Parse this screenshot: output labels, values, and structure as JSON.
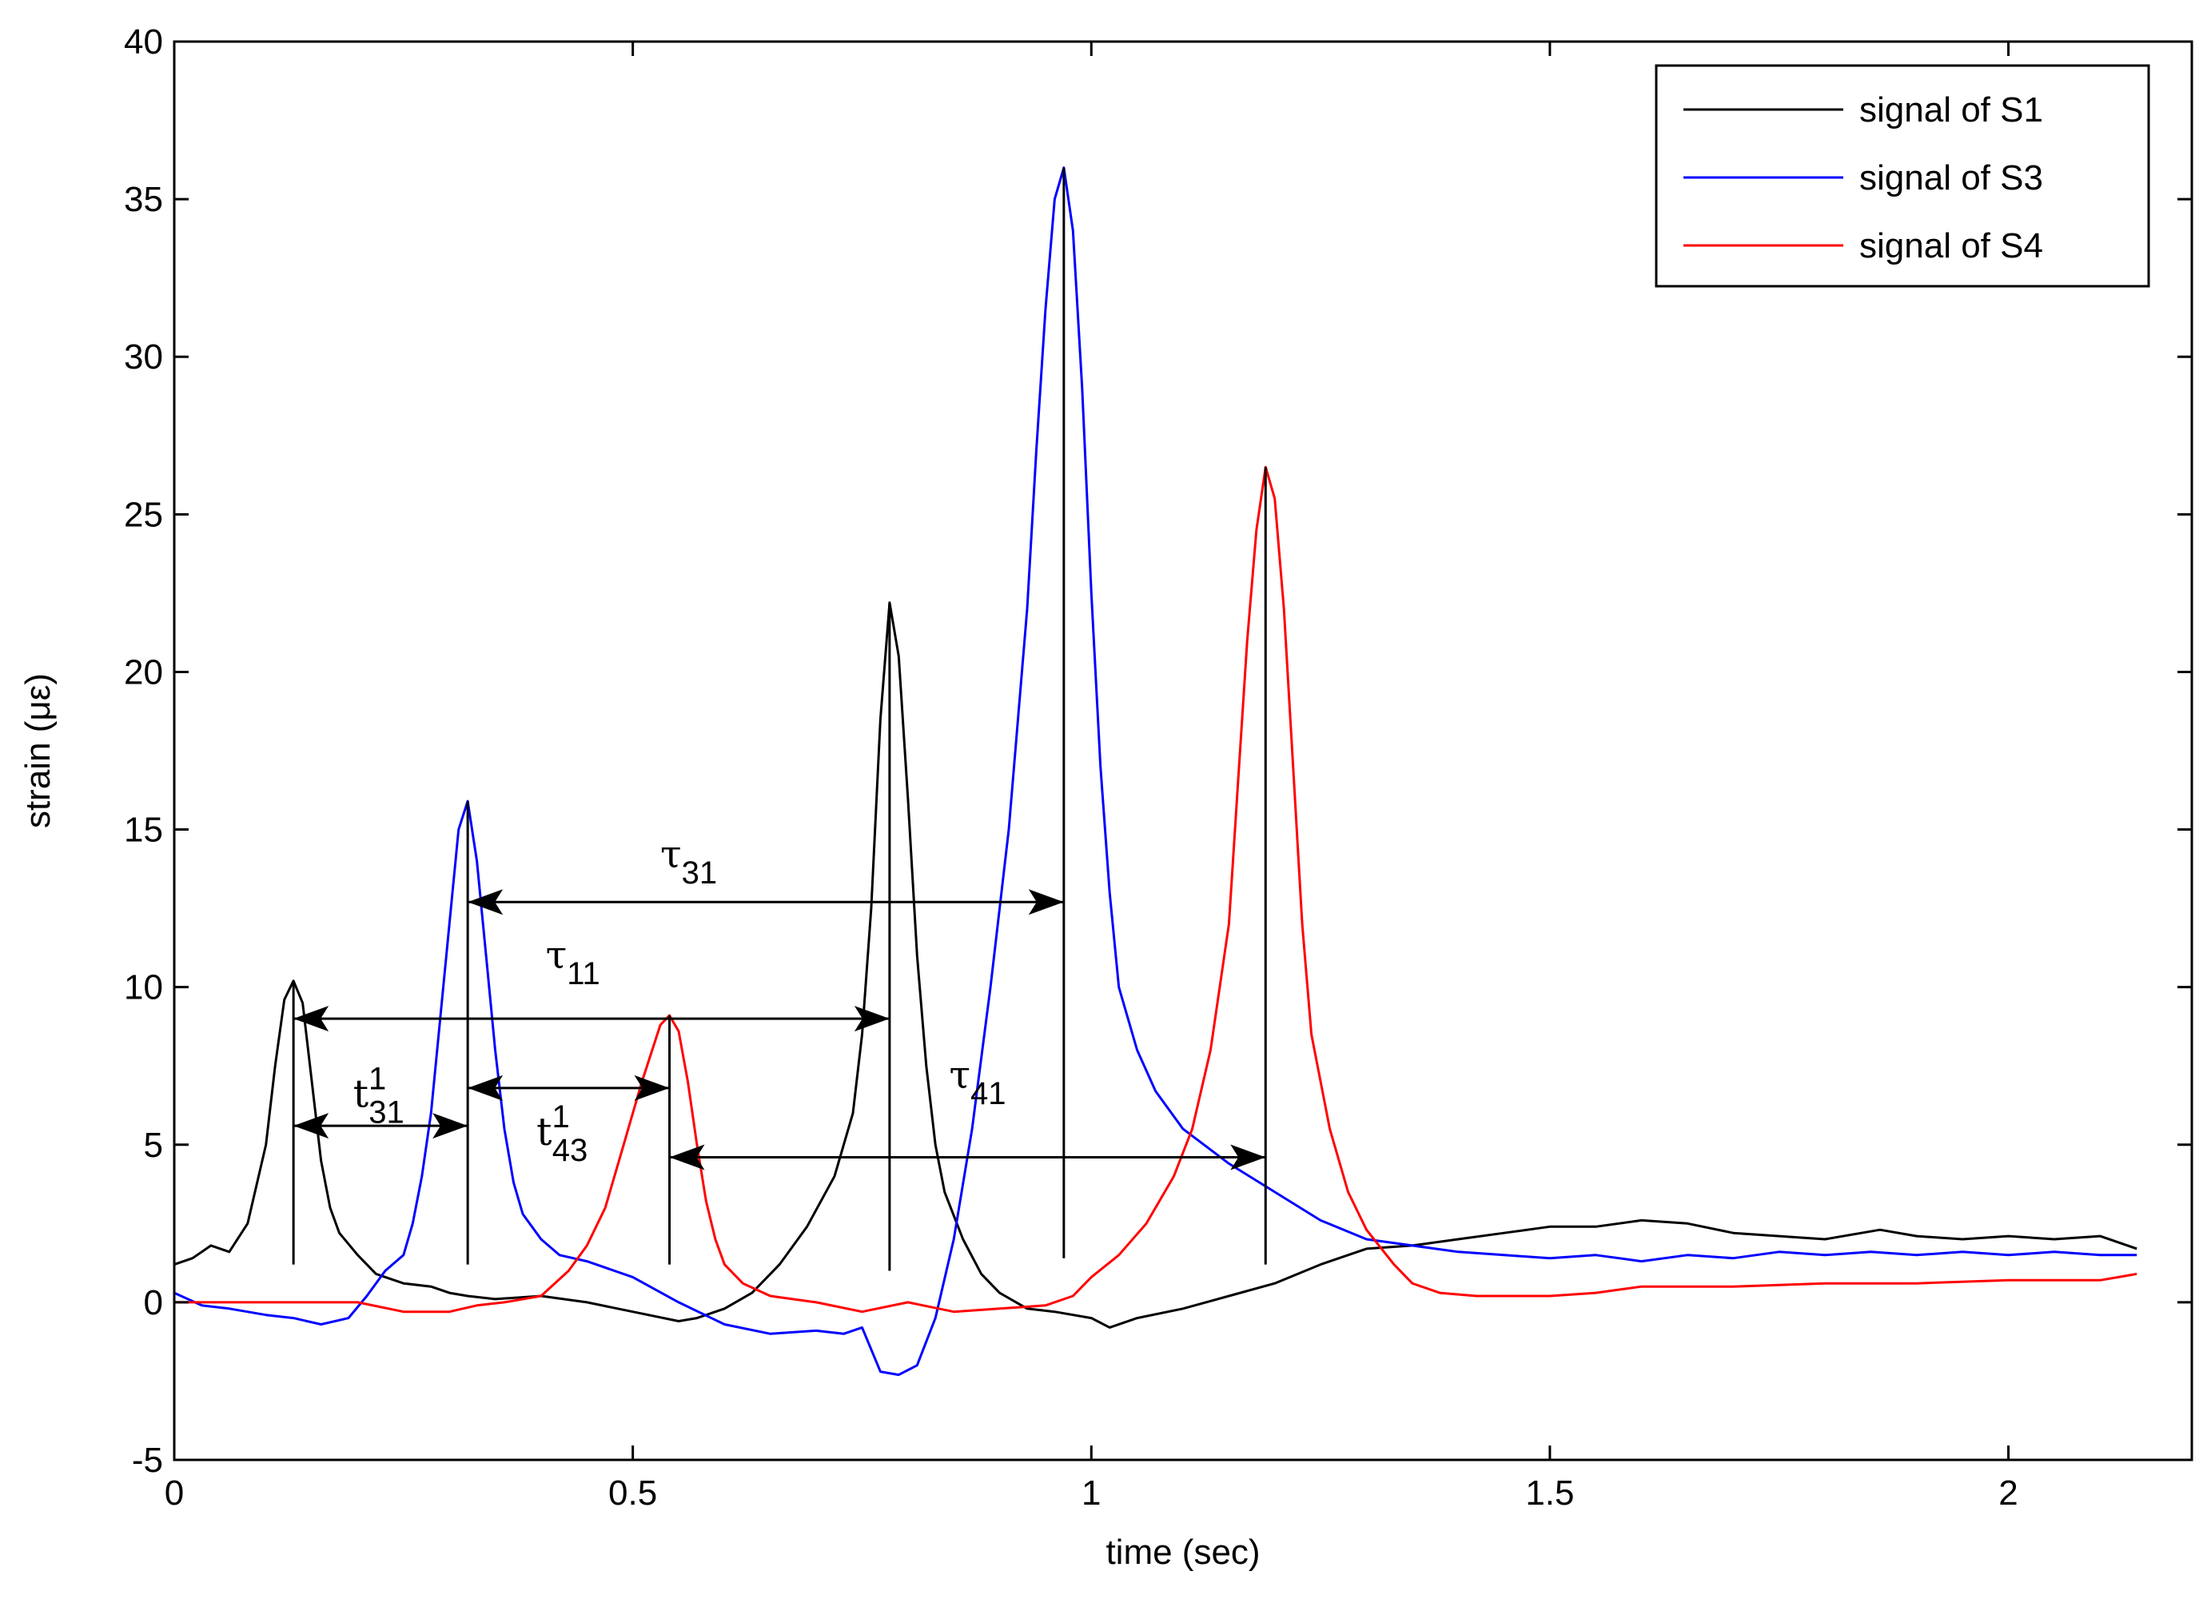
{
  "chart_data": {
    "type": "line",
    "title": "",
    "xlabel": "time (sec)",
    "ylabel": "strain  (με)",
    "xlim": [
      0,
      2.2
    ],
    "ylim": [
      -5,
      40
    ],
    "xticks": [
      0,
      0.5,
      1,
      1.5,
      2
    ],
    "xtick_labels": [
      "0",
      "0.5",
      "1",
      "1.5",
      "2"
    ],
    "yticks": [
      -5,
      0,
      5,
      10,
      15,
      20,
      25,
      30,
      35,
      40
    ],
    "ytick_labels": [
      "-5",
      "0",
      "5",
      "10",
      "15",
      "20",
      "25",
      "30",
      "35",
      "40"
    ],
    "grid": false,
    "legend_position": "top-right",
    "series": [
      {
        "name": "signal of S1",
        "color": "#000000",
        "x": [
          0,
          0.02,
          0.04,
          0.06,
          0.08,
          0.1,
          0.11,
          0.12,
          0.13,
          0.14,
          0.15,
          0.16,
          0.17,
          0.18,
          0.2,
          0.22,
          0.25,
          0.28,
          0.3,
          0.32,
          0.35,
          0.4,
          0.45,
          0.5,
          0.55,
          0.57,
          0.6,
          0.63,
          0.66,
          0.69,
          0.72,
          0.74,
          0.75,
          0.76,
          0.77,
          0.78,
          0.79,
          0.8,
          0.81,
          0.82,
          0.83,
          0.84,
          0.86,
          0.88,
          0.9,
          0.93,
          0.96,
          1.0,
          1.02,
          1.05,
          1.1,
          1.15,
          1.2,
          1.25,
          1.3,
          1.35,
          1.4,
          1.45,
          1.5,
          1.55,
          1.6,
          1.65,
          1.7,
          1.75,
          1.8,
          1.86,
          1.9,
          1.95,
          2.0,
          2.05,
          2.1,
          2.14
        ],
        "y": [
          1.2,
          1.4,
          1.8,
          1.6,
          2.5,
          5.0,
          7.5,
          9.6,
          10.2,
          9.5,
          7.0,
          4.5,
          3.0,
          2.2,
          1.5,
          0.9,
          0.6,
          0.5,
          0.3,
          0.2,
          0.1,
          0.2,
          0.0,
          -0.3,
          -0.6,
          -0.5,
          -0.2,
          0.3,
          1.2,
          2.4,
          4.0,
          6.0,
          8.5,
          12.5,
          18.5,
          22.2,
          20.5,
          16.0,
          11.0,
          7.5,
          5.0,
          3.5,
          2.0,
          0.9,
          0.3,
          -0.2,
          -0.3,
          -0.5,
          -0.8,
          -0.5,
          -0.2,
          0.2,
          0.6,
          1.2,
          1.7,
          1.8,
          2.0,
          2.2,
          2.4,
          2.4,
          2.6,
          2.5,
          2.2,
          2.1,
          2.0,
          2.3,
          2.1,
          2.0,
          2.1,
          2.0,
          2.1,
          1.7
        ]
      },
      {
        "name": "signal of S3",
        "color": "#0000ff",
        "x": [
          0,
          0.03,
          0.06,
          0.1,
          0.13,
          0.16,
          0.19,
          0.21,
          0.23,
          0.25,
          0.26,
          0.27,
          0.28,
          0.29,
          0.3,
          0.31,
          0.32,
          0.33,
          0.34,
          0.35,
          0.36,
          0.37,
          0.38,
          0.4,
          0.42,
          0.45,
          0.5,
          0.55,
          0.6,
          0.65,
          0.7,
          0.73,
          0.75,
          0.77,
          0.79,
          0.81,
          0.83,
          0.85,
          0.87,
          0.89,
          0.91,
          0.93,
          0.94,
          0.95,
          0.96,
          0.97,
          0.98,
          0.99,
          1.0,
          1.01,
          1.02,
          1.03,
          1.05,
          1.07,
          1.1,
          1.15,
          1.2,
          1.25,
          1.3,
          1.35,
          1.4,
          1.45,
          1.5,
          1.55,
          1.6,
          1.65,
          1.7,
          1.75,
          1.8,
          1.85,
          1.9,
          1.95,
          2.0,
          2.05,
          2.1,
          2.14
        ],
        "y": [
          0.3,
          -0.1,
          -0.2,
          -0.4,
          -0.5,
          -0.7,
          -0.5,
          0.2,
          1.0,
          1.5,
          2.5,
          4.0,
          6.0,
          9.0,
          12.0,
          15.0,
          15.9,
          14.0,
          11.0,
          8.0,
          5.5,
          3.8,
          2.8,
          2.0,
          1.5,
          1.3,
          0.8,
          0.0,
          -0.7,
          -1.0,
          -0.9,
          -1.0,
          -0.8,
          -2.2,
          -2.3,
          -2.0,
          -0.5,
          2.0,
          5.5,
          10.0,
          15.0,
          22.0,
          27.0,
          31.5,
          35.0,
          36.0,
          34.0,
          29.0,
          22.5,
          17.0,
          13.0,
          10.0,
          8.0,
          6.7,
          5.5,
          4.4,
          3.5,
          2.6,
          2.0,
          1.8,
          1.6,
          1.5,
          1.4,
          1.5,
          1.3,
          1.5,
          1.4,
          1.6,
          1.5,
          1.6,
          1.5,
          1.6,
          1.5,
          1.6,
          1.5,
          1.5
        ]
      },
      {
        "name": "signal of S4",
        "color": "#ff0000",
        "x": [
          0,
          0.05,
          0.1,
          0.15,
          0.2,
          0.25,
          0.3,
          0.33,
          0.36,
          0.4,
          0.43,
          0.45,
          0.47,
          0.49,
          0.51,
          0.53,
          0.54,
          0.55,
          0.56,
          0.57,
          0.58,
          0.59,
          0.6,
          0.62,
          0.65,
          0.7,
          0.75,
          0.8,
          0.85,
          0.9,
          0.95,
          0.98,
          1.0,
          1.03,
          1.06,
          1.09,
          1.11,
          1.13,
          1.15,
          1.16,
          1.17,
          1.18,
          1.19,
          1.2,
          1.21,
          1.22,
          1.23,
          1.24,
          1.26,
          1.28,
          1.3,
          1.33,
          1.35,
          1.38,
          1.42,
          1.45,
          1.5,
          1.55,
          1.6,
          1.7,
          1.8,
          1.9,
          2.0,
          2.1,
          2.14
        ],
        "y": [
          0.0,
          0.0,
          0.0,
          0.0,
          0.0,
          -0.3,
          -0.3,
          -0.1,
          0.0,
          0.2,
          1.0,
          1.8,
          3.0,
          5.0,
          7.0,
          8.8,
          9.1,
          8.6,
          7.0,
          5.0,
          3.2,
          2.0,
          1.2,
          0.6,
          0.2,
          0.0,
          -0.3,
          0.0,
          -0.3,
          -0.2,
          -0.1,
          0.2,
          0.8,
          1.5,
          2.5,
          4.0,
          5.5,
          8.0,
          12.0,
          16.5,
          21.0,
          24.5,
          26.5,
          25.5,
          22.0,
          17.0,
          12.0,
          8.5,
          5.5,
          3.5,
          2.3,
          1.2,
          0.6,
          0.3,
          0.2,
          0.2,
          0.2,
          0.3,
          0.5,
          0.5,
          0.6,
          0.6,
          0.7,
          0.7,
          0.9
        ]
      }
    ],
    "annotations": {
      "markers": [
        {
          "x": 0.13,
          "y_from": 1.2,
          "y_to": 10.2
        },
        {
          "x": 0.32,
          "y_from": 1.2,
          "y_to": 15.9
        },
        {
          "x": 0.54,
          "y_from": 1.2,
          "y_to": 9.1
        },
        {
          "x": 0.78,
          "y_from": 1.0,
          "y_to": 22.2
        },
        {
          "x": 0.97,
          "y_from": 1.4,
          "y_to": 36.0
        },
        {
          "x": 1.19,
          "y_from": 1.2,
          "y_to": 26.5
        }
      ],
      "arrows": [
        {
          "from": 0.13,
          "to": 0.32,
          "y": 5.6
        },
        {
          "from": 0.32,
          "to": 0.54,
          "y": 6.8
        },
        {
          "from": 0.13,
          "to": 0.78,
          "y": 9.0
        },
        {
          "from": 0.32,
          "to": 0.97,
          "y": 12.7
        },
        {
          "from": 0.54,
          "to": 1.19,
          "y": 4.6
        }
      ],
      "labels": [
        {
          "main": "t",
          "sup": "1",
          "sub": "31",
          "x": 0.195,
          "y": 6.2
        },
        {
          "main": "t",
          "sup": "1",
          "sub": "43",
          "x": 0.395,
          "y": 5.0
        },
        {
          "main": "τ",
          "sup": "",
          "sub": "11",
          "x": 0.405,
          "y": 10.6
        },
        {
          "main": "τ",
          "sup": "",
          "sub": "31",
          "x": 0.53,
          "y": 13.8
        },
        {
          "main": "τ",
          "sup": "",
          "sub": "41",
          "x": 0.845,
          "y": 6.8
        }
      ]
    }
  }
}
